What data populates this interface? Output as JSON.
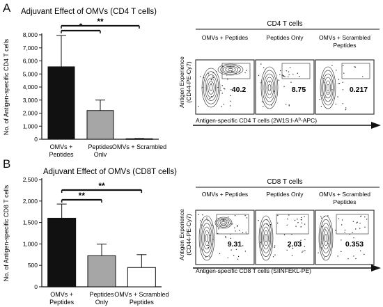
{
  "colors": {
    "black": "#111111",
    "gray": "#a6a6a6",
    "white": "#ffffff"
  },
  "panel_a": {
    "letter": "A",
    "flow_title": "CD4 T cells",
    "flow_columns": [
      "OMVs + Peptides",
      "Peptides Only",
      "OMVs + Scrambled Peptides"
    ],
    "flow_values": [
      "40.2",
      "8.75",
      "0.217"
    ],
    "flow_ylabel_1": "Antigen Experience",
    "flow_ylabel_2": "(CD44-PE-Cy7)",
    "flow_xlabel": "Antigen-specific CD4 T cells (2W1S:I-A",
    "flow_xlabel_sup": "b",
    "flow_xlabel_end": "-APC)"
  },
  "panel_b": {
    "letter": "B",
    "flow_title": "CD8 T cells",
    "flow_columns": [
      "OMVs + Peptides",
      "Peptides Only",
      "OMVs + Scrambled Peptides"
    ],
    "flow_values": [
      "9.31",
      "2.03",
      "0.353"
    ],
    "flow_ylabel_1": "Antigen Experience",
    "flow_ylabel_2": "(CD44-PE-Cy7)",
    "flow_xlabel": "Antigen-specific CD8 T cells (SIINFEKL-PE)"
  },
  "chart_data": [
    {
      "type": "bar",
      "title": "Adjuvant Effect of OMVs (CD4 T cells)",
      "ylabel": "No. of Antigen-specific CD4 T cells",
      "categories": [
        "OMVs + Peptides",
        "Peptides Only",
        "OMVs + Scrambled"
      ],
      "values": [
        5550,
        2200,
        40
      ],
      "errors": [
        2400,
        800,
        20
      ],
      "fill": [
        "#111111",
        "#a6a6a6",
        "#ffffff"
      ],
      "ylim": [
        0,
        8000
      ],
      "yticks": [
        "0",
        "1,000",
        "2,000",
        "3,000",
        "4,000",
        "5,000",
        "6,000",
        "7,000",
        "8,000"
      ],
      "significance": [
        {
          "from": 0,
          "to": 1,
          "label": "*"
        },
        {
          "from": 0,
          "to": 2,
          "label": "**"
        }
      ]
    },
    {
      "type": "bar",
      "title": "Adjuvant Effect of OMVs (CD8T cells)",
      "ylabel": "No. of Antigen-specific CD8 T cells",
      "categories": [
        "OMVs + Peptides",
        "Peptides Only",
        "OMVs + Scrambled Peptides"
      ],
      "values": [
        1600,
        725,
        450
      ],
      "errors": [
        330,
        270,
        300
      ],
      "fill": [
        "#111111",
        "#a6a6a6",
        "#ffffff"
      ],
      "ylim": [
        0,
        2500
      ],
      "yticks": [
        "0",
        "500",
        "1,000",
        "1,500",
        "2,000",
        "2,500"
      ],
      "significance": [
        {
          "from": 0,
          "to": 1,
          "label": "**"
        },
        {
          "from": 0,
          "to": 2,
          "label": "**"
        }
      ]
    }
  ]
}
